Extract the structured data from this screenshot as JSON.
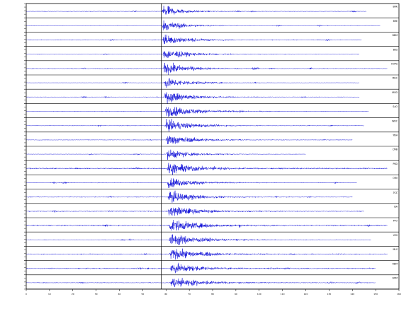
{
  "chart_data": {
    "type": "line",
    "title": "",
    "xlabel": "",
    "ylabel": "",
    "xlim": [
      0,
      160
    ],
    "grid": false,
    "legend": "none",
    "colors": {
      "trace": "#1010d8",
      "frame": "#000000",
      "pick": "#000000",
      "background": "#ffffff"
    },
    "x_ticks": [
      0,
      10,
      20,
      30,
      40,
      50,
      60,
      70,
      80,
      90,
      100,
      110,
      120,
      130,
      140,
      150,
      160
    ],
    "pick_time": 58,
    "series": [
      {
        "name": "BRK",
        "onset": 58.2,
        "end": 146,
        "peak": 1.0,
        "noise": 0.045,
        "decay": 7
      },
      {
        "name": "BRE",
        "onset": 58.4,
        "end": 152,
        "peak": 0.9,
        "noise": 0.04,
        "decay": 8
      },
      {
        "name": "BDM",
        "onset": 58.6,
        "end": 144,
        "peak": 0.95,
        "noise": 0.06,
        "decay": 8
      },
      {
        "name": "BKS",
        "onset": 58.7,
        "end": 143,
        "peak": 0.85,
        "noise": 0.05,
        "decay": 9
      },
      {
        "name": "HOPS",
        "onset": 58.9,
        "end": 155,
        "peak": 1.0,
        "noise": 0.06,
        "decay": 9
      },
      {
        "name": "MHC",
        "onset": 59.1,
        "end": 143,
        "peak": 0.8,
        "noise": 0.035,
        "decay": 10
      },
      {
        "name": "MOD",
        "onset": 59.3,
        "end": 143,
        "peak": 1.0,
        "noise": 0.05,
        "decay": 10
      },
      {
        "name": "SAO",
        "onset": 59.5,
        "end": 147,
        "peak": 0.9,
        "noise": 0.05,
        "decay": 12
      },
      {
        "name": "WDC",
        "onset": 59.7,
        "end": 145,
        "peak": 0.95,
        "noise": 0.05,
        "decay": 10
      },
      {
        "name": "YBH",
        "onset": 59.9,
        "end": 140,
        "peak": 0.9,
        "noise": 0.05,
        "decay": 10
      },
      {
        "name": "CMB",
        "onset": 60.1,
        "end": 120,
        "peak": 0.85,
        "noise": 0.04,
        "decay": 9
      },
      {
        "name": "PKD",
        "onset": 60.3,
        "end": 155,
        "peak": 1.0,
        "noise": 0.09,
        "decay": 10
      },
      {
        "name": "ORV",
        "onset": 60.5,
        "end": 142,
        "peak": 0.85,
        "noise": 0.05,
        "decay": 10
      },
      {
        "name": "SCZ",
        "onset": 60.7,
        "end": 140,
        "peak": 0.95,
        "noise": 0.06,
        "decay": 10
      },
      {
        "name": "ISA",
        "onset": 60.9,
        "end": 145,
        "peak": 0.9,
        "noise": 0.07,
        "decay": 11
      },
      {
        "name": "PFO",
        "onset": 61.1,
        "end": 155,
        "peak": 1.0,
        "noise": 0.09,
        "decay": 11
      },
      {
        "name": "VES",
        "onset": 61.3,
        "end": 148,
        "peak": 0.95,
        "noise": 0.05,
        "decay": 12
      },
      {
        "name": "MLS",
        "onset": 61.5,
        "end": 155,
        "peak": 0.9,
        "noise": 0.07,
        "decay": 12
      },
      {
        "name": "RDM",
        "onset": 61.7,
        "end": 150,
        "peak": 0.9,
        "noise": 0.08,
        "decay": 10
      },
      {
        "name": "SMM",
        "onset": 61.9,
        "end": 150,
        "peak": 0.95,
        "noise": 0.06,
        "decay": 11
      }
    ]
  }
}
